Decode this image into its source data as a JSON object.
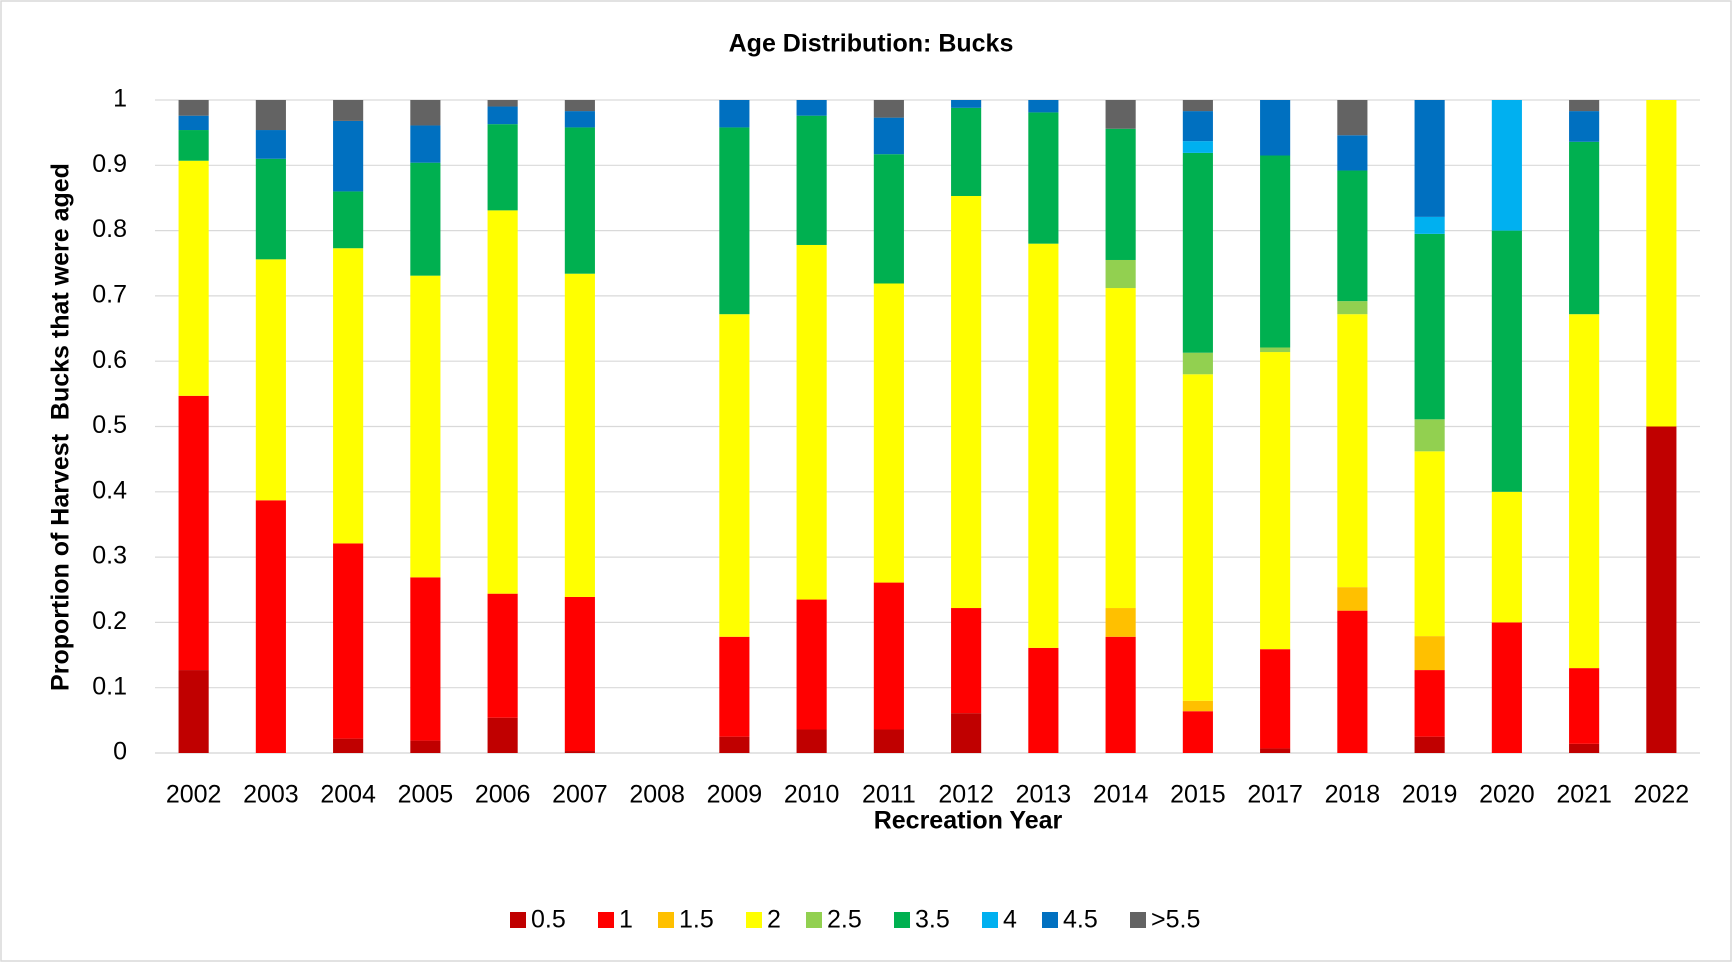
{
  "chart_data": {
    "type": "stacked_bar",
    "title": "Age Distribution: Bucks",
    "x_label": "Recreation Year",
    "y_label": "Proportion of Harvest  Bucks that were aged",
    "categories": [
      "2002",
      "2003",
      "2004",
      "2005",
      "2006",
      "2007",
      "2008",
      "2009",
      "2010",
      "2011",
      "2012",
      "2013",
      "2014",
      "2015",
      "2017",
      "2018",
      "2019",
      "2020",
      "2021",
      "2022"
    ],
    "series": [
      {
        "name": "0.5",
        "color": "#C00000",
        "values": [
          0.127,
          0,
          0.022,
          0.019,
          0.054,
          0.003,
          0,
          0.025,
          0.036,
          0.036,
          0.061,
          0,
          0,
          0,
          0.007,
          0,
          0.025,
          0,
          0.014,
          0.5
        ]
      },
      {
        "name": "1",
        "color": "#FF0000",
        "values": [
          0.42,
          0.387,
          0.299,
          0.25,
          0.19,
          0.236,
          0,
          0.153,
          0.199,
          0.225,
          0.161,
          0.161,
          0.178,
          0.064,
          0.152,
          0.218,
          0.102,
          0.2,
          0.116,
          0
        ]
      },
      {
        "name": "1.5",
        "color": "#FFC000",
        "values": [
          0,
          0,
          0,
          0,
          0,
          0,
          0,
          0,
          0,
          0,
          0,
          0,
          0.044,
          0.016,
          0,
          0.036,
          0.052,
          0,
          0,
          0
        ]
      },
      {
        "name": "2",
        "color": "#FFFF00",
        "values": [
          0.36,
          0.369,
          0.452,
          0.462,
          0.587,
          0.495,
          0,
          0.494,
          0.543,
          0.458,
          0.631,
          0.619,
          0.49,
          0.5,
          0.455,
          0.418,
          0.283,
          0.2,
          0.542,
          0.5
        ]
      },
      {
        "name": "2.5",
        "color": "#92D050",
        "values": [
          0,
          0,
          0,
          0,
          0,
          0,
          0,
          0,
          0,
          0,
          0,
          0,
          0.043,
          0.033,
          0.007,
          0.02,
          0.049,
          0,
          0,
          0
        ]
      },
      {
        "name": "3.5",
        "color": "#00B050",
        "values": [
          0.047,
          0.154,
          0.087,
          0.173,
          0.132,
          0.224,
          0,
          0.286,
          0.198,
          0.198,
          0.135,
          0.201,
          0.201,
          0.306,
          0.294,
          0.2,
          0.284,
          0.4,
          0.264,
          0
        ]
      },
      {
        "name": "4",
        "color": "#00B0F0",
        "values": [
          0,
          0,
          0,
          0,
          0,
          0,
          0,
          0,
          0,
          0,
          0,
          0,
          0,
          0.018,
          0,
          0,
          0.026,
          0.2,
          0,
          0
        ]
      },
      {
        "name": "4.5",
        "color": "#0070C0",
        "values": [
          0.022,
          0.044,
          0.108,
          0.057,
          0.027,
          0.025,
          0,
          0.042,
          0.024,
          0.056,
          0.012,
          0.019,
          0,
          0.046,
          0.085,
          0.054,
          0.179,
          0,
          0.047,
          0
        ]
      },
      {
        "name": ">5.5",
        "color": "#636363",
        "values": [
          0.024,
          0.046,
          0.032,
          0.039,
          0.01,
          0.017,
          0,
          0,
          0,
          0.027,
          0,
          0,
          0.044,
          0.017,
          0,
          0.054,
          0,
          0,
          0.017,
          0
        ]
      }
    ],
    "ylim": [
      0,
      1
    ],
    "yticks": [
      0,
      0.1,
      0.2,
      0.3,
      0.4,
      0.5,
      0.6,
      0.7,
      0.8,
      0.9,
      1
    ],
    "grid": true,
    "legend": "bottom"
  }
}
